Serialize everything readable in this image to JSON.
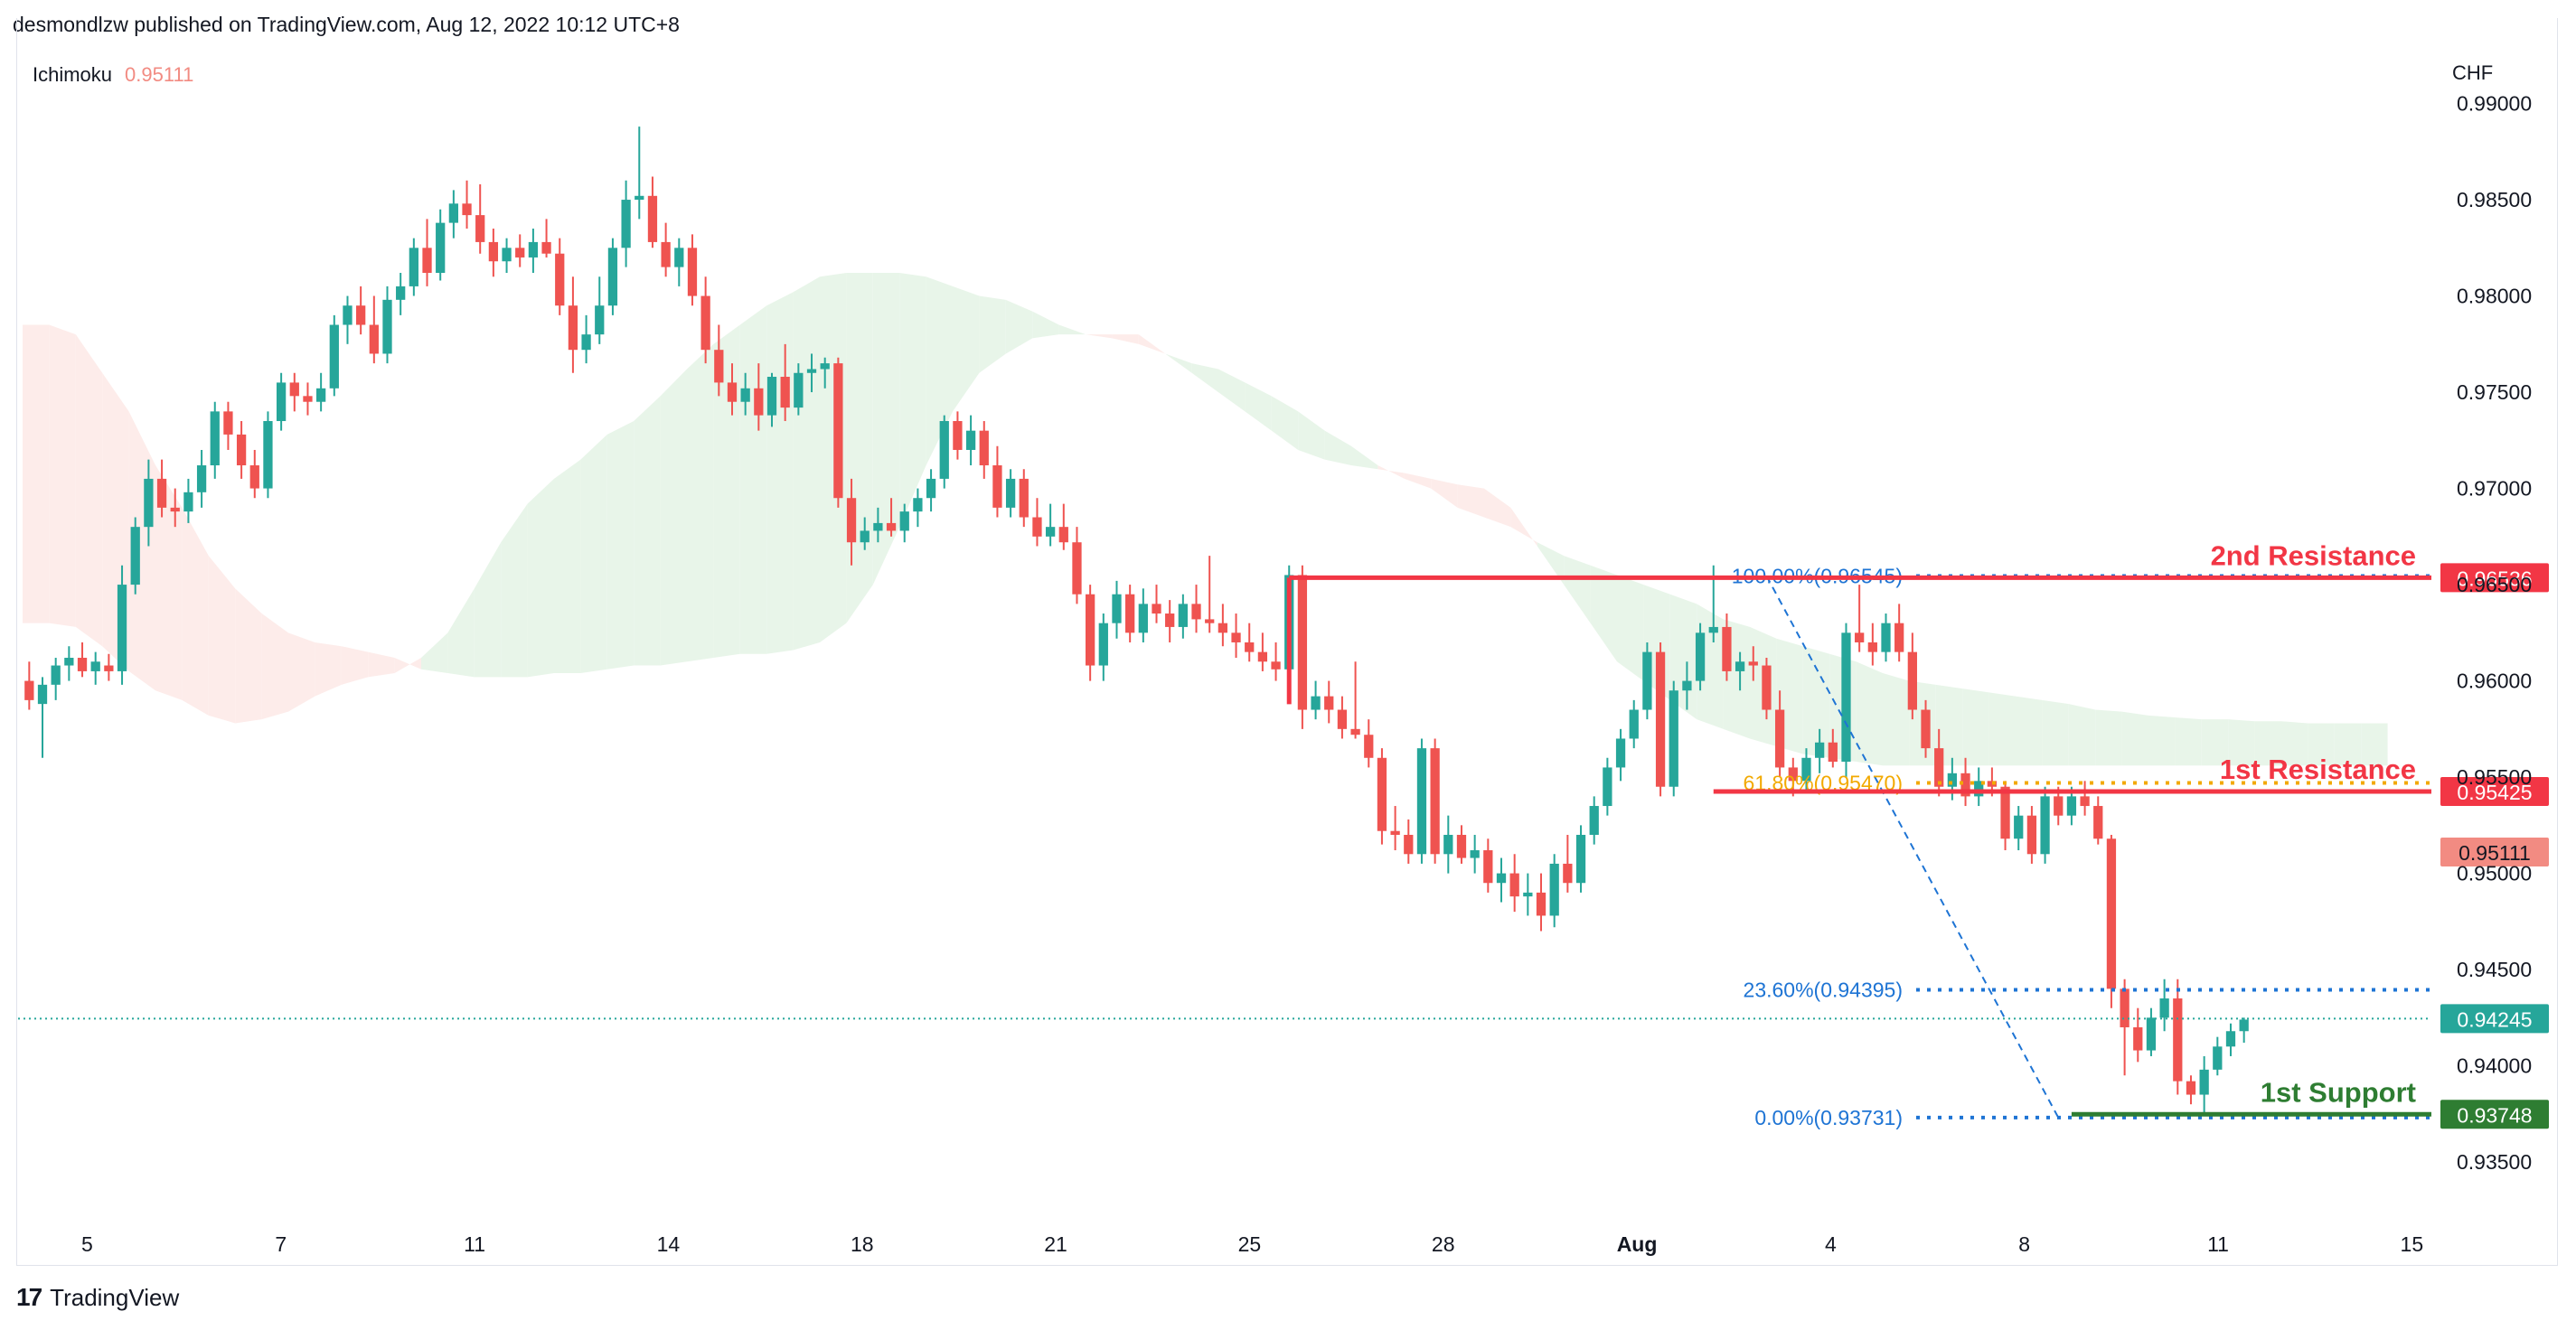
{
  "header": {
    "published_line": "desmondlzw published on TradingView.com, Aug 12, 2022 10:12 UTC+8"
  },
  "indicator": {
    "name": "Ichimoku",
    "value": "0.95111"
  },
  "axis": {
    "currency": "CHF"
  },
  "footer": {
    "brand": "TradingView"
  },
  "colors": {
    "up": "#26a69a",
    "down": "#ef5350",
    "resistance": "#f23645",
    "support": "#2e7d32",
    "fib_blue": "#1e74d4",
    "fib_orange": "#f2a900",
    "cloud_bull": "#e8f5e9",
    "cloud_bear": "#fdecea"
  },
  "chart_data": {
    "type": "candlestick",
    "symbol_currency": "CHF",
    "ylim": [
      0.932,
      0.9935
    ],
    "y_ticks": [
      "0.99000",
      "0.98500",
      "0.98000",
      "0.97500",
      "0.97000",
      "0.96500",
      "0.96000",
      "0.95500",
      "0.95000",
      "0.94500",
      "0.94000",
      "0.93500"
    ],
    "x_ticks": [
      "5",
      "7",
      "11",
      "14",
      "18",
      "21",
      "25",
      "28",
      "Aug",
      "4",
      "8",
      "11",
      "15"
    ],
    "candles": [
      [
        0.96,
        0.961,
        0.9585,
        0.959
      ],
      [
        0.9588,
        0.9602,
        0.956,
        0.9598
      ],
      [
        0.9598,
        0.9612,
        0.959,
        0.9608
      ],
      [
        0.9608,
        0.9618,
        0.96,
        0.9612
      ],
      [
        0.9612,
        0.962,
        0.9602,
        0.9605
      ],
      [
        0.9605,
        0.9615,
        0.9598,
        0.961
      ],
      [
        0.9608,
        0.9614,
        0.96,
        0.9605
      ],
      [
        0.9605,
        0.966,
        0.9598,
        0.965
      ],
      [
        0.965,
        0.9685,
        0.9645,
        0.968
      ],
      [
        0.968,
        0.9715,
        0.967,
        0.9705
      ],
      [
        0.9705,
        0.9715,
        0.9685,
        0.969
      ],
      [
        0.969,
        0.97,
        0.968,
        0.9688
      ],
      [
        0.9688,
        0.9705,
        0.9682,
        0.9698
      ],
      [
        0.9698,
        0.972,
        0.969,
        0.9712
      ],
      [
        0.9712,
        0.9745,
        0.9705,
        0.974
      ],
      [
        0.974,
        0.9745,
        0.972,
        0.9728
      ],
      [
        0.9728,
        0.9735,
        0.9705,
        0.9712
      ],
      [
        0.9712,
        0.972,
        0.9695,
        0.97
      ],
      [
        0.97,
        0.974,
        0.9695,
        0.9735
      ],
      [
        0.9735,
        0.976,
        0.973,
        0.9755
      ],
      [
        0.9755,
        0.976,
        0.974,
        0.9748
      ],
      [
        0.9748,
        0.9755,
        0.9738,
        0.9745
      ],
      [
        0.9745,
        0.976,
        0.974,
        0.9752
      ],
      [
        0.9752,
        0.979,
        0.9748,
        0.9785
      ],
      [
        0.9785,
        0.98,
        0.9775,
        0.9795
      ],
      [
        0.9795,
        0.9805,
        0.978,
        0.9785
      ],
      [
        0.9785,
        0.98,
        0.9765,
        0.977
      ],
      [
        0.977,
        0.9805,
        0.9765,
        0.9798
      ],
      [
        0.9798,
        0.9812,
        0.979,
        0.9805
      ],
      [
        0.9805,
        0.983,
        0.98,
        0.9825
      ],
      [
        0.9825,
        0.984,
        0.9805,
        0.9812
      ],
      [
        0.9812,
        0.9845,
        0.9808,
        0.9838
      ],
      [
        0.9838,
        0.9855,
        0.983,
        0.9848
      ],
      [
        0.9848,
        0.986,
        0.9835,
        0.9842
      ],
      [
        0.9842,
        0.9858,
        0.9822,
        0.9828
      ],
      [
        0.9828,
        0.9835,
        0.981,
        0.9818
      ],
      [
        0.9818,
        0.983,
        0.9812,
        0.9825
      ],
      [
        0.9825,
        0.9832,
        0.9815,
        0.982
      ],
      [
        0.982,
        0.9835,
        0.9812,
        0.9828
      ],
      [
        0.9828,
        0.984,
        0.982,
        0.9822
      ],
      [
        0.9822,
        0.983,
        0.979,
        0.9795
      ],
      [
        0.9795,
        0.981,
        0.976,
        0.9772
      ],
      [
        0.9772,
        0.979,
        0.9765,
        0.978
      ],
      [
        0.978,
        0.981,
        0.9775,
        0.9795
      ],
      [
        0.9795,
        0.983,
        0.979,
        0.9825
      ],
      [
        0.9825,
        0.986,
        0.9815,
        0.985
      ],
      [
        0.985,
        0.9888,
        0.984,
        0.9852
      ],
      [
        0.9852,
        0.9862,
        0.9825,
        0.9828
      ],
      [
        0.9828,
        0.9838,
        0.981,
        0.9815
      ],
      [
        0.9815,
        0.983,
        0.9805,
        0.9825
      ],
      [
        0.9825,
        0.9832,
        0.9795,
        0.98
      ],
      [
        0.98,
        0.981,
        0.9765,
        0.9772
      ],
      [
        0.9772,
        0.9785,
        0.9748,
        0.9755
      ],
      [
        0.9755,
        0.9765,
        0.9738,
        0.9745
      ],
      [
        0.9745,
        0.976,
        0.9738,
        0.9752
      ],
      [
        0.9752,
        0.9765,
        0.973,
        0.9738
      ],
      [
        0.9738,
        0.976,
        0.9732,
        0.9758
      ],
      [
        0.9758,
        0.9775,
        0.9735,
        0.9742
      ],
      [
        0.9742,
        0.9765,
        0.9738,
        0.976
      ],
      [
        0.976,
        0.977,
        0.975,
        0.9762
      ],
      [
        0.9762,
        0.9768,
        0.9752,
        0.9765
      ],
      [
        0.9765,
        0.9768,
        0.969,
        0.9695
      ],
      [
        0.9695,
        0.9705,
        0.966,
        0.9672
      ],
      [
        0.9672,
        0.9685,
        0.9668,
        0.9678
      ],
      [
        0.9678,
        0.969,
        0.9672,
        0.9682
      ],
      [
        0.9682,
        0.9695,
        0.9675,
        0.9678
      ],
      [
        0.9678,
        0.9692,
        0.9672,
        0.9688
      ],
      [
        0.9688,
        0.97,
        0.968,
        0.9695
      ],
      [
        0.9695,
        0.971,
        0.9688,
        0.9705
      ],
      [
        0.9705,
        0.9738,
        0.97,
        0.9735
      ],
      [
        0.9735,
        0.974,
        0.9715,
        0.972
      ],
      [
        0.972,
        0.9738,
        0.9712,
        0.973
      ],
      [
        0.973,
        0.9735,
        0.9705,
        0.9712
      ],
      [
        0.9712,
        0.9722,
        0.9685,
        0.969
      ],
      [
        0.969,
        0.971,
        0.9685,
        0.9705
      ],
      [
        0.9705,
        0.971,
        0.968,
        0.9685
      ],
      [
        0.9685,
        0.9695,
        0.967,
        0.9675
      ],
      [
        0.9675,
        0.9692,
        0.967,
        0.968
      ],
      [
        0.968,
        0.9692,
        0.9668,
        0.9672
      ],
      [
        0.9672,
        0.968,
        0.964,
        0.9645
      ],
      [
        0.9645,
        0.965,
        0.96,
        0.9608
      ],
      [
        0.9608,
        0.9635,
        0.96,
        0.963
      ],
      [
        0.963,
        0.9652,
        0.9622,
        0.9645
      ],
      [
        0.9645,
        0.965,
        0.962,
        0.9625
      ],
      [
        0.9625,
        0.9648,
        0.962,
        0.964
      ],
      [
        0.964,
        0.965,
        0.963,
        0.9635
      ],
      [
        0.9635,
        0.9642,
        0.962,
        0.9628
      ],
      [
        0.9628,
        0.9645,
        0.9622,
        0.964
      ],
      [
        0.964,
        0.965,
        0.9625,
        0.9632
      ],
      [
        0.9632,
        0.9665,
        0.9625,
        0.963
      ],
      [
        0.963,
        0.964,
        0.9618,
        0.9625
      ],
      [
        0.9625,
        0.9635,
        0.9612,
        0.962
      ],
      [
        0.962,
        0.963,
        0.961,
        0.9615
      ],
      [
        0.9615,
        0.9625,
        0.9605,
        0.961
      ],
      [
        0.961,
        0.962,
        0.96,
        0.9606
      ],
      [
        0.9606,
        0.966,
        0.96,
        0.9655
      ],
      [
        0.9655,
        0.966,
        0.9575,
        0.9585
      ],
      [
        0.9585,
        0.96,
        0.958,
        0.9592
      ],
      [
        0.9592,
        0.96,
        0.9578,
        0.9585
      ],
      [
        0.9585,
        0.9592,
        0.957,
        0.9575
      ],
      [
        0.9575,
        0.961,
        0.957,
        0.9572
      ],
      [
        0.9572,
        0.958,
        0.9555,
        0.956
      ],
      [
        0.956,
        0.9565,
        0.9515,
        0.9522
      ],
      [
        0.9522,
        0.9535,
        0.9512,
        0.952
      ],
      [
        0.952,
        0.9528,
        0.9505,
        0.951
      ],
      [
        0.951,
        0.957,
        0.9505,
        0.9565
      ],
      [
        0.9565,
        0.957,
        0.9505,
        0.951
      ],
      [
        0.951,
        0.953,
        0.95,
        0.952
      ],
      [
        0.952,
        0.9525,
        0.9505,
        0.9508
      ],
      [
        0.9508,
        0.952,
        0.95,
        0.9512
      ],
      [
        0.9512,
        0.9518,
        0.949,
        0.9495
      ],
      [
        0.9495,
        0.9508,
        0.9485,
        0.95
      ],
      [
        0.95,
        0.951,
        0.948,
        0.9488
      ],
      [
        0.9488,
        0.95,
        0.9478,
        0.949
      ],
      [
        0.949,
        0.95,
        0.947,
        0.9478
      ],
      [
        0.9478,
        0.951,
        0.9472,
        0.9505
      ],
      [
        0.9505,
        0.952,
        0.949,
        0.9495
      ],
      [
        0.9495,
        0.9525,
        0.949,
        0.952
      ],
      [
        0.952,
        0.954,
        0.9515,
        0.9535
      ],
      [
        0.9535,
        0.956,
        0.953,
        0.9555
      ],
      [
        0.9555,
        0.9575,
        0.9548,
        0.957
      ],
      [
        0.957,
        0.959,
        0.9565,
        0.9585
      ],
      [
        0.9585,
        0.962,
        0.958,
        0.9615
      ],
      [
        0.9615,
        0.962,
        0.954,
        0.9545
      ],
      [
        0.9545,
        0.96,
        0.954,
        0.9595
      ],
      [
        0.9595,
        0.961,
        0.9585,
        0.96
      ],
      [
        0.96,
        0.963,
        0.9595,
        0.9625
      ],
      [
        0.9625,
        0.966,
        0.962,
        0.9628
      ],
      [
        0.9628,
        0.9635,
        0.96,
        0.9605
      ],
      [
        0.9605,
        0.9615,
        0.9595,
        0.961
      ],
      [
        0.961,
        0.9618,
        0.96,
        0.9608
      ],
      [
        0.9608,
        0.9612,
        0.958,
        0.9585
      ],
      [
        0.9585,
        0.9595,
        0.955,
        0.9555
      ],
      [
        0.9555,
        0.956,
        0.954,
        0.9548
      ],
      [
        0.9548,
        0.9565,
        0.9542,
        0.956
      ],
      [
        0.956,
        0.9575,
        0.9552,
        0.9568
      ],
      [
        0.9568,
        0.9575,
        0.9555,
        0.9558
      ],
      [
        0.9558,
        0.963,
        0.955,
        0.9625
      ],
      [
        0.9625,
        0.965,
        0.9615,
        0.962
      ],
      [
        0.962,
        0.963,
        0.9608,
        0.9615
      ],
      [
        0.9615,
        0.9635,
        0.961,
        0.963
      ],
      [
        0.963,
        0.964,
        0.961,
        0.9615
      ],
      [
        0.9615,
        0.9625,
        0.958,
        0.9585
      ],
      [
        0.9585,
        0.959,
        0.956,
        0.9565
      ],
      [
        0.9565,
        0.9575,
        0.954,
        0.9545
      ],
      [
        0.9545,
        0.956,
        0.9538,
        0.9552
      ],
      [
        0.9552,
        0.956,
        0.9535,
        0.954
      ],
      [
        0.954,
        0.9555,
        0.9535,
        0.9548
      ],
      [
        0.9548,
        0.9555,
        0.954,
        0.9545
      ],
      [
        0.9545,
        0.9548,
        0.9512,
        0.9518
      ],
      [
        0.9518,
        0.9535,
        0.9512,
        0.953
      ],
      [
        0.953,
        0.9535,
        0.9505,
        0.951
      ],
      [
        0.951,
        0.9545,
        0.9505,
        0.954
      ],
      [
        0.954,
        0.9545,
        0.9525,
        0.953
      ],
      [
        0.953,
        0.9545,
        0.9525,
        0.954
      ],
      [
        0.954,
        0.9548,
        0.953,
        0.9535
      ],
      [
        0.9535,
        0.954,
        0.9515,
        0.9518
      ],
      [
        0.9518,
        0.952,
        0.943,
        0.944
      ],
      [
        0.944,
        0.9445,
        0.9395,
        0.942
      ],
      [
        0.942,
        0.943,
        0.9402,
        0.9408
      ],
      [
        0.9408,
        0.943,
        0.9405,
        0.9425
      ],
      [
        0.9425,
        0.9445,
        0.9418,
        0.9435
      ],
      [
        0.9435,
        0.9445,
        0.9385,
        0.9392
      ],
      [
        0.9392,
        0.9395,
        0.938,
        0.9385
      ],
      [
        0.9385,
        0.9405,
        0.9375,
        0.9398
      ],
      [
        0.9398,
        0.9415,
        0.9395,
        0.941
      ],
      [
        0.941,
        0.9422,
        0.9405,
        0.9418
      ],
      [
        0.9418,
        0.9425,
        0.9412,
        0.9424
      ]
    ],
    "ichimoku_cloud": {
      "span_a": [
        0.963,
        0.963,
        0.9628,
        0.9618,
        0.9605,
        0.9595,
        0.959,
        0.9582,
        0.9578,
        0.958,
        0.9584,
        0.9592,
        0.9598,
        0.9602,
        0.9604,
        0.9612,
        0.9625,
        0.9648,
        0.9672,
        0.9692,
        0.9705,
        0.9715,
        0.9728,
        0.9735,
        0.9748,
        0.9762,
        0.9775,
        0.9785,
        0.9795,
        0.9802,
        0.981,
        0.9812,
        0.9812,
        0.9812,
        0.981,
        0.9805,
        0.98,
        0.9798,
        0.9792,
        0.9785,
        0.978,
        0.9778,
        0.9775,
        0.977,
        0.9765,
        0.9762,
        0.9755,
        0.9748,
        0.974,
        0.973,
        0.9722,
        0.9712,
        0.9705,
        0.97,
        0.969,
        0.9685,
        0.968,
        0.9672,
        0.9665,
        0.966,
        0.9655,
        0.965,
        0.9645,
        0.964,
        0.9632,
        0.9628,
        0.9622,
        0.9618,
        0.9614,
        0.961,
        0.9604,
        0.96,
        0.9598,
        0.9596,
        0.9594,
        0.9592,
        0.959,
        0.9588,
        0.9585,
        0.9584,
        0.9582,
        0.9581,
        0.958,
        0.958,
        0.9579,
        0.9579,
        0.9578,
        0.9578,
        0.9578,
        0.9578
      ],
      "span_b": [
        0.9785,
        0.9785,
        0.978,
        0.976,
        0.974,
        0.9712,
        0.969,
        0.9665,
        0.9648,
        0.9635,
        0.9625,
        0.962,
        0.9618,
        0.9615,
        0.9612,
        0.9606,
        0.9604,
        0.9602,
        0.9602,
        0.9602,
        0.9604,
        0.9604,
        0.9606,
        0.9608,
        0.9608,
        0.961,
        0.9612,
        0.9614,
        0.9614,
        0.9616,
        0.962,
        0.963,
        0.965,
        0.968,
        0.9712,
        0.974,
        0.976,
        0.977,
        0.9778,
        0.978,
        0.978,
        0.978,
        0.978,
        0.977,
        0.976,
        0.975,
        0.974,
        0.973,
        0.972,
        0.9715,
        0.9712,
        0.971,
        0.9708,
        0.9705,
        0.9702,
        0.97,
        0.969,
        0.967,
        0.965,
        0.963,
        0.961,
        0.96,
        0.959,
        0.958,
        0.9575,
        0.957,
        0.9566,
        0.9562,
        0.956,
        0.9558,
        0.9556,
        0.9556,
        0.9556,
        0.9556,
        0.9556,
        0.9556,
        0.9556,
        0.9556,
        0.9556,
        0.9556,
        0.9556,
        0.9556,
        0.9556,
        0.9556,
        0.9556,
        0.9556,
        0.9556,
        0.9556,
        0.9556,
        0.9556
      ]
    },
    "horizontal_levels": [
      {
        "label": "2nd Resistance",
        "price": 0.96536,
        "price_label": "0.96536",
        "color": "#f23645",
        "from_index": 95
      },
      {
        "label": "1st Resistance",
        "price": 0.95425,
        "price_label": "0.95425",
        "color": "#f23645",
        "from_index": 127
      },
      {
        "label": "1st Support",
        "price": 0.93748,
        "price_label": "0.93748",
        "color": "#2e7d32",
        "from_index": 154
      }
    ],
    "fib_levels": [
      {
        "label": "100.00%(0.96545)",
        "price": 0.96545,
        "color": "#1e74d4"
      },
      {
        "label": "61.80%(0.95470)",
        "price": 0.9547,
        "color": "#f2a900"
      },
      {
        "label": "23.60%(0.94395)",
        "price": 0.94395,
        "color": "#1e74d4"
      },
      {
        "label": "0.00%(0.93731)",
        "price": 0.93731,
        "color": "#1e74d4"
      }
    ],
    "fib_trend": {
      "from_index": 131,
      "from_price": 0.96545,
      "to_index": 153,
      "to_price": 0.93731
    },
    "current_price": {
      "price": 0.94245,
      "label": "0.94245"
    },
    "ichimoku_price_label": {
      "price": 0.95111,
      "label": "0.95111"
    }
  }
}
